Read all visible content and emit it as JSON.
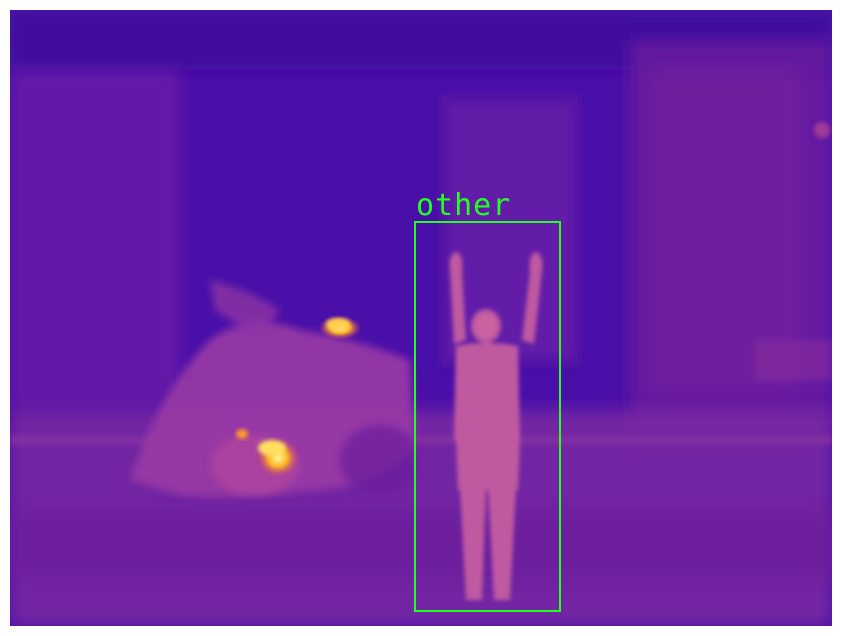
{
  "image": {
    "type": "thermal-photo",
    "palette": "purple-orange-yellow",
    "colors": {
      "background": "#4a0fa8",
      "warm": "#a0339a",
      "hot": "#ff7a1a",
      "hottest": "#fff05a",
      "box": "#22ff22"
    }
  },
  "detections": [
    {
      "label": "other",
      "color": "#22ff22"
    }
  ]
}
